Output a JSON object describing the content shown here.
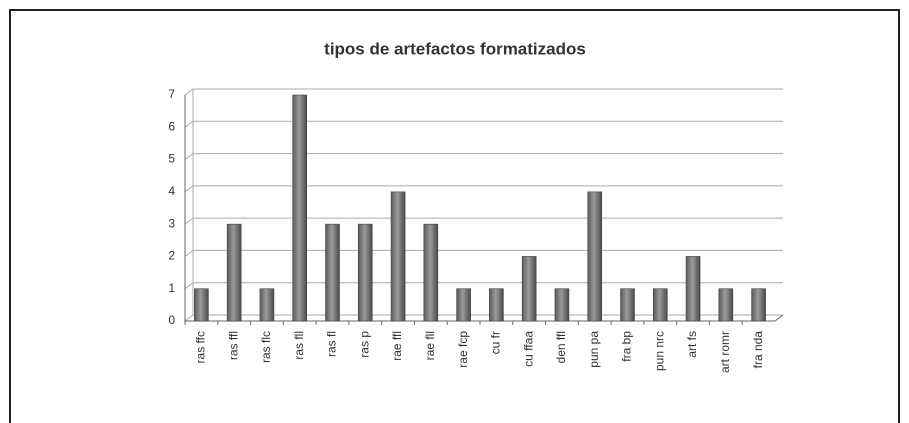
{
  "chart_data": {
    "type": "bar",
    "title": "tipos de artefactos formatizados",
    "categories": [
      "ras ffc",
      "ras ffl",
      "ras flc",
      "ras fll",
      "ras fl",
      "ras p",
      "rae ffl",
      "rae fll",
      "rae fcp",
      "cu fr",
      "cu ffaa",
      "den ffl",
      "pun pa",
      "fra bp",
      "pun nrc",
      "art fs",
      "art romr",
      "fra nda"
    ],
    "values": [
      1,
      3,
      1,
      7,
      3,
      3,
      4,
      3,
      1,
      1,
      2,
      1,
      4,
      1,
      1,
      2,
      1,
      1
    ],
    "color": "#808080",
    "ylim": [
      0,
      7
    ],
    "yticks": [
      0,
      1,
      2,
      3,
      4,
      5,
      6,
      7
    ],
    "grid": true
  }
}
